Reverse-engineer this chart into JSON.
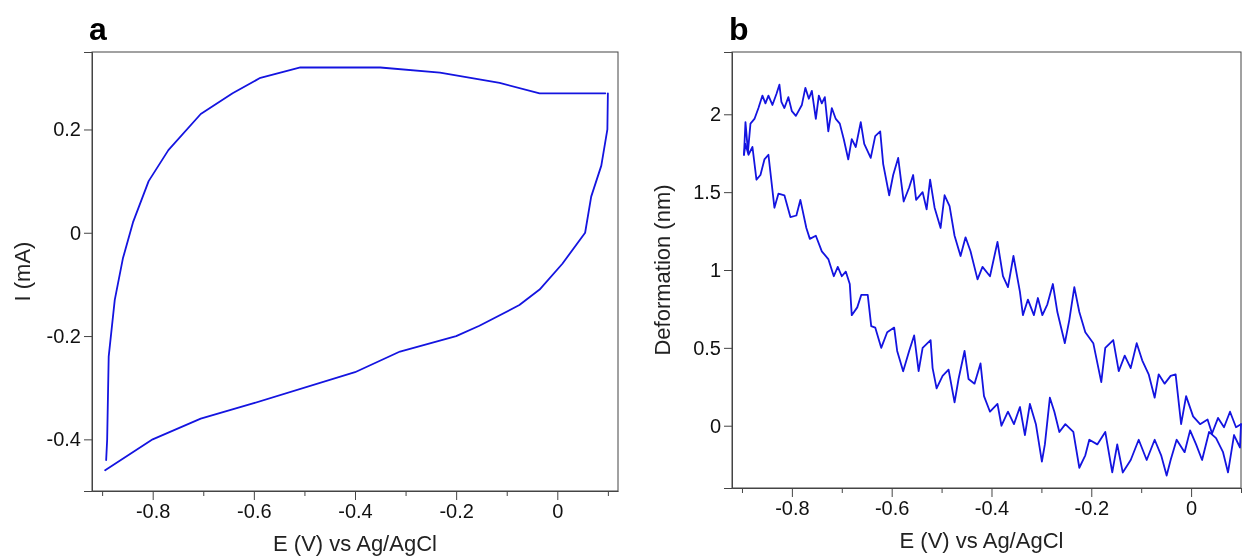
{
  "chart_data": [
    {
      "type": "line",
      "title": "a",
      "xlabel": "E (V) vs Ag/AgCl",
      "ylabel": "I (mA)",
      "xlim": [
        -0.92,
        0.12
      ],
      "ylim": [
        -0.5,
        0.35
      ],
      "xticks": [
        {
          "value": -0.9,
          "label": null
        },
        -0.8,
        {
          "value": -0.7,
          "label": null
        },
        -0.6,
        {
          "value": -0.5,
          "label": null
        },
        -0.4,
        {
          "value": -0.3,
          "label": null
        },
        -0.2,
        {
          "value": -0.1,
          "label": null
        },
        0,
        {
          "value": 0.1,
          "label": null
        }
      ],
      "yticks": [
        -0.4,
        -0.2,
        0,
        0.2
      ],
      "series": [
        {
          "color": "#1414e0",
          "x": [
            0.1,
            0.099,
            0.087,
            0.067,
            0.055,
            0.01,
            -0.035,
            -0.075,
            -0.154,
            -0.2,
            -0.311,
            -0.4,
            -0.6,
            -0.705,
            -0.8,
            -0.847,
            -0.894
          ],
          "values": [
            0.27,
            0.2,
            0.13,
            0.07,
            0.0,
            -0.06,
            -0.11,
            -0.14,
            -0.18,
            -0.2,
            -0.23,
            -0.27,
            -0.33,
            -0.36,
            -0.4,
            -0.43,
            -0.46
          ]
        },
        {
          "color": "#1414e0",
          "x": [
            -0.892,
            -0.89,
            -0.887,
            -0.875,
            -0.859,
            -0.839,
            -0.808,
            -0.769,
            -0.705,
            -0.642,
            -0.587,
            -0.508,
            -0.429,
            -0.35,
            -0.232,
            -0.114,
            -0.035,
            0.043,
            0.095
          ],
          "values": [
            -0.44,
            -0.4,
            -0.24,
            -0.13,
            -0.05,
            0.02,
            0.1,
            0.16,
            0.23,
            0.27,
            0.3,
            0.32,
            0.32,
            0.32,
            0.31,
            0.29,
            0.27,
            0.27,
            0.27
          ]
        }
      ]
    },
    {
      "type": "line",
      "title": "b",
      "xlabel": "E (V) vs Ag/AgCl",
      "ylabel": "Deformation (nm)",
      "xlim": [
        -0.92,
        0.1
      ],
      "ylim": [
        -0.4,
        2.4
      ],
      "xticks": [
        {
          "value": -0.9,
          "label": null
        },
        -0.8,
        {
          "value": -0.7,
          "label": null
        },
        -0.6,
        {
          "value": -0.5,
          "label": null
        },
        -0.4,
        {
          "value": -0.3,
          "label": null
        },
        -0.2,
        {
          "value": -0.1,
          "label": null
        },
        0,
        {
          "value": 0.1,
          "label": null
        }
      ],
      "yticks": [
        0,
        {
          "value": 0.5,
          "label": "0.5"
        },
        1,
        {
          "value": 1.5,
          "label": "1.5"
        },
        2
      ],
      "series": [
        {
          "color": "#1414e0",
          "x": [
            -0.896,
            -0.893,
            -0.888,
            -0.883,
            -0.875,
            -0.867,
            -0.859,
            -0.853,
            -0.847,
            -0.839,
            -0.831,
            -0.825,
            -0.821,
            -0.815,
            -0.807,
            -0.8,
            -0.792,
            -0.78,
            -0.773,
            -0.766,
            -0.76,
            -0.752,
            -0.746,
            -0.74,
            -0.734,
            -0.727,
            -0.72,
            -0.712,
            -0.704,
            -0.696,
            -0.687,
            -0.68,
            -0.672,
            -0.662,
            -0.655,
            -0.642,
            -0.633,
            -0.623,
            -0.617,
            -0.605,
            -0.597,
            -0.587,
            -0.576,
            -0.565,
            -0.557,
            -0.551,
            -0.538,
            -0.53,
            -0.523,
            -0.514,
            -0.502,
            -0.494,
            -0.484,
            -0.474,
            -0.462,
            -0.452,
            -0.442,
            -0.428,
            -0.418,
            -0.403,
            -0.388,
            -0.377,
            -0.367,
            -0.356,
            -0.343,
            -0.337,
            -0.327,
            -0.315,
            -0.307,
            -0.298,
            -0.288,
            -0.277,
            -0.268,
            -0.253,
            -0.244,
            -0.234,
            -0.224,
            -0.212,
            -0.196,
            -0.18,
            -0.172,
            -0.156,
            -0.145,
            -0.133,
            -0.121,
            -0.109,
            -0.098,
            -0.085,
            -0.073,
            -0.065,
            -0.053,
            -0.041,
            -0.031,
            -0.02,
            -0.01,
            0.004,
            0.018,
            0.033,
            0.042,
            0.054,
            0.066,
            0.078,
            0.09,
            0.1
          ],
          "values": [
            1.74,
            1.95,
            1.76,
            1.94,
            1.97,
            2.04,
            2.12,
            2.07,
            2.12,
            2.06,
            2.13,
            2.19,
            2.08,
            2.04,
            2.11,
            2.02,
            1.99,
            2.06,
            2.17,
            2.1,
            2.15,
            1.97,
            2.12,
            2.07,
            2.11,
            1.89,
            2.04,
            1.97,
            1.94,
            1.84,
            1.71,
            1.84,
            1.79,
            1.95,
            1.81,
            1.72,
            1.86,
            1.89,
            1.68,
            1.48,
            1.61,
            1.72,
            1.44,
            1.53,
            1.61,
            1.45,
            1.5,
            1.39,
            1.58,
            1.4,
            1.27,
            1.48,
            1.41,
            1.22,
            1.09,
            1.21,
            1.12,
            0.94,
            1.02,
            0.96,
            1.18,
            0.96,
            0.89,
            1.09,
            0.86,
            0.71,
            0.81,
            0.71,
            0.82,
            0.71,
            0.78,
            0.91,
            0.73,
            0.53,
            0.68,
            0.89,
            0.73,
            0.6,
            0.53,
            0.28,
            0.5,
            0.55,
            0.35,
            0.45,
            0.37,
            0.53,
            0.42,
            0.33,
            0.18,
            0.33,
            0.27,
            0.32,
            0.33,
            0.01,
            0.19,
            0.06,
            0.01,
            0.04,
            -0.05,
            0.05,
            -0.01,
            0.09,
            -0.01,
            0.01
          ]
        },
        {
          "color": "#1414e0",
          "x": [
            0.1,
            0.098,
            0.086,
            0.074,
            0.064,
            0.05,
            0.036,
            0.022,
            0.01,
            -0.002,
            -0.013,
            -0.029,
            -0.041,
            -0.049,
            -0.06,
            -0.073,
            -0.089,
            -0.105,
            -0.121,
            -0.137,
            -0.148,
            -0.158,
            -0.172,
            -0.188,
            -0.204,
            -0.212,
            -0.224,
            -0.236,
            -0.252,
            -0.264,
            -0.274,
            -0.283,
            -0.293,
            -0.299,
            -0.311,
            -0.323,
            -0.333,
            -0.343,
            -0.355,
            -0.367,
            -0.38,
            -0.388,
            -0.403,
            -0.415,
            -0.422,
            -0.434,
            -0.446,
            -0.454,
            -0.466,
            -0.474,
            -0.486,
            -0.498,
            -0.51,
            -0.518,
            -0.522,
            -0.538,
            -0.546,
            -0.555,
            -0.565,
            -0.577,
            -0.589,
            -0.595,
            -0.609,
            -0.621,
            -0.633,
            -0.641,
            -0.648,
            -0.661,
            -0.669,
            -0.68,
            -0.684,
            -0.692,
            -0.7,
            -0.708,
            -0.716,
            -0.727,
            -0.74,
            -0.752,
            -0.764,
            -0.771,
            -0.783,
            -0.791,
            -0.803,
            -0.815,
            -0.827,
            -0.835,
            -0.847,
            -0.855,
            -0.863,
            -0.871,
            -0.879,
            -0.887,
            -0.893,
            -0.896
          ],
          "values": [
            0.01,
            -0.14,
            -0.06,
            -0.3,
            -0.17,
            -0.08,
            -0.04,
            -0.22,
            -0.12,
            -0.03,
            -0.17,
            -0.09,
            -0.22,
            -0.32,
            -0.19,
            -0.09,
            -0.22,
            -0.09,
            -0.22,
            -0.3,
            -0.12,
            -0.3,
            -0.04,
            -0.12,
            -0.09,
            -0.19,
            -0.27,
            -0.04,
            0.01,
            -0.04,
            0.09,
            0.18,
            -0.12,
            -0.23,
            0.01,
            0.14,
            -0.06,
            0.12,
            0.01,
            0.09,
            0.0,
            0.14,
            0.09,
            0.19,
            0.4,
            0.27,
            0.3,
            0.48,
            0.3,
            0.15,
            0.36,
            0.32,
            0.24,
            0.37,
            0.55,
            0.5,
            0.35,
            0.58,
            0.48,
            0.35,
            0.48,
            0.63,
            0.6,
            0.5,
            0.63,
            0.64,
            0.84,
            0.84,
            0.76,
            0.71,
            0.91,
            0.99,
            0.96,
            1.02,
            0.96,
            1.07,
            1.12,
            1.22,
            1.2,
            1.27,
            1.45,
            1.35,
            1.34,
            1.48,
            1.49,
            1.4,
            1.74,
            1.71,
            1.61,
            1.58,
            1.79,
            1.74,
            1.81,
            1.74
          ]
        }
      ]
    }
  ]
}
